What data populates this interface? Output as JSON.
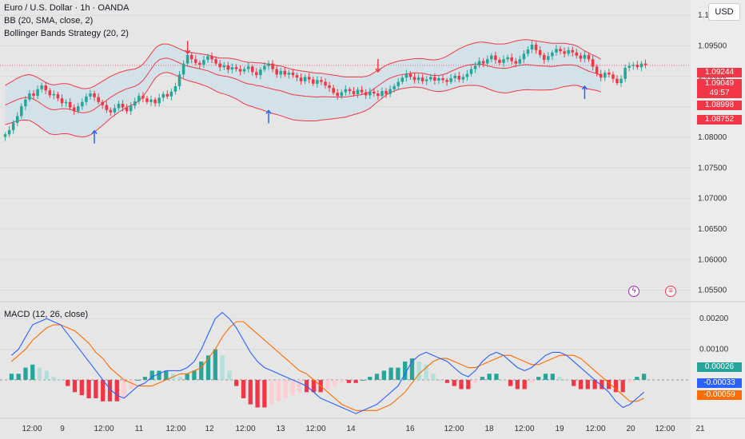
{
  "header": {
    "title": "Euro / U.S. Dollar · 1h · OANDA",
    "indicator_bb": "BB (20, SMA, close, 2)",
    "indicator_strategy": "Bollinger Bands Strategy (20, 2)",
    "currency_button": "USD"
  },
  "price_tags": [
    {
      "value": "1.09244",
      "color": "#f23645"
    },
    {
      "value": "1.09049",
      "color": "#f23645"
    },
    {
      "value": "49:57",
      "color": "#f23645"
    },
    {
      "value": "1.08998",
      "color": "#f23645"
    },
    {
      "value": "1.08752",
      "color": "#f23645"
    }
  ],
  "macd": {
    "label": "MACD (12, 26, close)",
    "tags": [
      {
        "value": "0.00026",
        "color": "#26a69a"
      },
      {
        "value": "-0.00033",
        "color": "#2962ff"
      },
      {
        "value": "-0.00059",
        "color": "#ff6d00"
      }
    ]
  },
  "icons": {
    "event1": "lightning-icon",
    "event2": "us-flag-icon"
  },
  "colors": {
    "up": "#26a69a",
    "down": "#f23645",
    "bb": "#f23645",
    "bb_fill": "#cfe0e8",
    "macd": "#2962ff",
    "signal": "#ff6d00"
  },
  "chart_data": [
    {
      "type": "candlestick",
      "title": "Euro / U.S. Dollar · 1h · OANDA",
      "x_ticks": [
        "12:00",
        "9",
        "12:00",
        "11",
        "12:00",
        "12",
        "12:00",
        "13",
        "12:00",
        "14",
        "16",
        "12:00",
        "18",
        "12:00",
        "19",
        "12:00",
        "20",
        "12:00",
        "21"
      ],
      "y_ticks": [
        1.1,
        1.095,
        1.09,
        1.085,
        1.08,
        1.075,
        1.07,
        1.065,
        1.06,
        1.055
      ],
      "y_tick_labels": [
        "1.10000",
        "1.09500",
        "1.09000",
        "1.08500",
        "1.08000",
        "1.07500",
        "1.07000",
        "1.06500",
        "1.06000",
        "1.05500"
      ],
      "ylim": [
        1.0535,
        1.1025
      ],
      "close": [
        1.0805,
        1.0812,
        1.0824,
        1.0835,
        1.0851,
        1.0862,
        1.0872,
        1.0868,
        1.0879,
        1.0885,
        1.0877,
        1.0869,
        1.0871,
        1.0864,
        1.0856,
        1.0858,
        1.0849,
        1.0843,
        1.0851,
        1.0858,
        1.0867,
        1.0872,
        1.0866,
        1.0858,
        1.0853,
        1.0845,
        1.0841,
        1.0848,
        1.0855,
        1.0849,
        1.0843,
        1.0852,
        1.0859,
        1.0868,
        1.0864,
        1.0858,
        1.0862,
        1.0856,
        1.0865,
        1.0871,
        1.0867,
        1.0875,
        1.0884,
        1.0903,
        1.0921,
        1.0935,
        1.0928,
        1.0922,
        1.0919,
        1.0927,
        1.0933,
        1.0928,
        1.0921,
        1.0915,
        1.0918,
        1.0911,
        1.0915,
        1.0912,
        1.0908,
        1.0912,
        1.0916,
        1.0907,
        1.0902,
        1.0911,
        1.0917,
        1.0921,
        1.0912,
        1.0903,
        1.0909,
        1.0903,
        1.0906,
        1.0902,
        1.0898,
        1.0892,
        1.0899,
        1.0895,
        1.0888,
        1.0894,
        1.0891,
        1.0885,
        1.0881,
        1.0873,
        1.0868,
        1.0874,
        1.0879,
        1.0876,
        1.0871,
        1.0878,
        1.0874,
        1.0869,
        1.0875,
        1.0872,
        1.0868,
        1.0876,
        1.0871,
        1.0879,
        1.0884,
        1.0891,
        1.0898,
        1.0904,
        1.0899,
        1.0894,
        1.0898,
        1.0892,
        1.0895,
        1.0899,
        1.0893,
        1.0897,
        1.0894,
        1.0891,
        1.0897,
        1.0901,
        1.0895,
        1.0899,
        1.0904,
        1.0912,
        1.0918,
        1.0925,
        1.0921,
        1.0928,
        1.0934,
        1.0927,
        1.0922,
        1.0928,
        1.0931,
        1.0925,
        1.0921,
        1.0928,
        1.0937,
        1.0944,
        1.0952,
        1.0943,
        1.0935,
        1.0927,
        1.0933,
        1.0939,
        1.0945,
        1.0941,
        1.0937,
        1.0943,
        1.0939,
        1.0934,
        1.0929,
        1.0935,
        1.0928,
        1.0916,
        1.0904,
        1.0898,
        1.0906,
        1.0903,
        1.0896,
        1.0889,
        1.0896,
        1.0914,
        1.0917,
        1.0919,
        1.0915,
        1.0921,
        1.0918
      ],
      "bb_upper": [
        1.0885,
        1.0889,
        1.0893,
        1.0897,
        1.09,
        1.0902,
        1.0903,
        1.0901,
        1.0898,
        1.0894,
        1.089,
        1.0887,
        1.0886,
        1.0887,
        1.0888,
        1.0888,
        1.0887,
        1.0884,
        1.0882,
        1.088,
        1.088,
        1.0881,
        1.0884,
        1.0888,
        1.0892,
        1.0896,
        1.09,
        1.0903,
        1.0906,
        1.0908,
        1.091,
        1.0911,
        1.0912,
        1.0915,
        1.092,
        1.0928,
        1.0937,
        1.0946,
        1.0951,
        1.0953,
        1.0953,
        1.0951,
        1.0948,
        1.0945,
        1.0942,
        1.094,
        1.0939,
        1.0938,
        1.0937,
        1.0936,
        1.0935,
        1.0933,
        1.0931,
        1.093,
        1.093,
        1.093,
        1.0929,
        1.0928,
        1.0926,
        1.0924,
        1.0923,
        1.0923,
        1.0922,
        1.0922,
        1.0921,
        1.092,
        1.0919,
        1.0918,
        1.0917,
        1.0915,
        1.0913,
        1.0911,
        1.091,
        1.0909,
        1.0908,
        1.0907,
        1.0906,
        1.0905,
        1.0905,
        1.0904,
        1.0903,
        1.0902,
        1.0901,
        1.09,
        1.0899,
        1.0899,
        1.0899,
        1.0899,
        1.0899,
        1.09,
        1.0902,
        1.0906,
        1.091,
        1.0914,
        1.0918,
        1.0921,
        1.0923,
        1.0925,
        1.0926,
        1.0927,
        1.0928,
        1.0929,
        1.0929,
        1.0929,
        1.0928,
        1.0927,
        1.0927,
        1.0928,
        1.093,
        1.0933,
        1.0937,
        1.0941,
        1.0945,
        1.0948,
        1.0951,
        1.0953,
        1.0955,
        1.0956,
        1.0956,
        1.0955,
        1.0954,
        1.0953,
        1.0953,
        1.0953,
        1.0954,
        1.0956,
        1.0958,
        1.0959,
        1.096,
        1.096,
        1.0959,
        1.0958,
        1.0957,
        1.0956,
        1.0955,
        1.0954,
        1.0954,
        1.0954,
        1.0954,
        1.0953,
        1.0952,
        1.095,
        1.0946,
        1.0942,
        1.0938,
        1.0935,
        1.0932,
        1.0928
      ]
    },
    {
      "type": "bar+line",
      "title": "MACD (12, 26, close)",
      "y_ticks": [
        0.002,
        0.001
      ],
      "y_tick_labels": [
        "0.00200",
        "0.00100"
      ],
      "ylim": [
        -0.0012,
        0.0025
      ],
      "series": [
        {
          "name": "MACD",
          "values": [
            0.0008,
            0.001,
            0.0014,
            0.0018,
            0.0019,
            0.002,
            0.0019,
            0.0018,
            0.0015,
            0.0012,
            0.0009,
            0.0006,
            0.0003,
            0.0,
            -0.0003,
            -0.0005,
            -0.0006,
            -0.0004,
            -0.0002,
            -0.0001,
            0.0001,
            0.0002,
            0.0003,
            0.0003,
            0.0003,
            0.0004,
            0.0006,
            0.001,
            0.0015,
            0.002,
            0.0022,
            0.002,
            0.0017,
            0.0013,
            0.0009,
            0.0006,
            0.0004,
            0.0003,
            0.0002,
            0.0001,
            0.0,
            -0.0001,
            -0.0002,
            -0.0004,
            -0.0006,
            -0.0007,
            -0.0008,
            -0.0009,
            -0.001,
            -0.0011,
            -0.001,
            -0.0009,
            -0.0008,
            -0.0006,
            -0.0004,
            -0.0002,
            0.0002,
            0.0006,
            0.0008,
            0.0009,
            0.0008,
            0.0007,
            0.0006,
            0.0004,
            0.0002,
            0.0001,
            0.0003,
            0.0006,
            0.0008,
            0.0009,
            0.0008,
            0.0006,
            0.0004,
            0.0003,
            0.0004,
            0.0006,
            0.0008,
            0.0009,
            0.0009,
            0.0008,
            0.0006,
            0.0004,
            0.0002,
            0.0,
            -0.0002,
            -0.0004,
            -0.0007,
            -0.0009,
            -0.0008,
            -0.0006,
            -0.0004
          ]
        },
        {
          "name": "Signal",
          "values": [
            0.0006,
            0.0008,
            0.001,
            0.0013,
            0.0015,
            0.0017,
            0.0018,
            0.0018,
            0.0017,
            0.0016,
            0.0014,
            0.0012,
            0.0009,
            0.0007,
            0.0004,
            0.0002,
            0.0,
            -0.0001,
            -0.0002,
            -0.0002,
            -0.0002,
            -0.0001,
            0.0,
            0.0001,
            0.0002,
            0.0002,
            0.0003,
            0.0004,
            0.0007,
            0.001,
            0.0014,
            0.0017,
            0.0019,
            0.0019,
            0.0017,
            0.0015,
            0.0013,
            0.0011,
            0.0009,
            0.0007,
            0.0005,
            0.0003,
            0.0002,
            0.0,
            -0.0002,
            -0.0004,
            -0.0006,
            -0.0008,
            -0.0009,
            -0.001,
            -0.001,
            -0.001,
            -0.001,
            -0.0009,
            -0.0008,
            -0.0006,
            -0.0004,
            -0.0001,
            0.0002,
            0.0004,
            0.0006,
            0.0007,
            0.0007,
            0.0006,
            0.0005,
            0.0004,
            0.0004,
            0.0005,
            0.0006,
            0.0007,
            0.0008,
            0.0008,
            0.0007,
            0.0006,
            0.0005,
            0.0005,
            0.0006,
            0.0007,
            0.0008,
            0.0008,
            0.0008,
            0.0007,
            0.0005,
            0.0003,
            0.0001,
            -0.0001,
            -0.0003,
            -0.0005,
            -0.0007,
            -0.0007,
            -0.0006
          ]
        },
        {
          "name": "Histogram",
          "values": [
            0.0002,
            0.0002,
            0.0004,
            0.0005,
            0.0004,
            0.0003,
            0.0001,
            0.0,
            -0.0002,
            -0.0004,
            -0.0005,
            -0.0006,
            -0.0006,
            -0.0007,
            -0.0007,
            -0.0007,
            -0.0006,
            -0.0003,
            0.0,
            0.0001,
            0.0003,
            0.0003,
            0.0003,
            0.0002,
            0.0001,
            0.0002,
            0.0003,
            0.0006,
            0.0008,
            0.001,
            0.0008,
            0.0003,
            -0.0002,
            -0.0006,
            -0.0008,
            -0.0009,
            -0.0009,
            -0.0008,
            -0.0007,
            -0.0006,
            -0.0005,
            -0.0004,
            -0.0004,
            -0.0004,
            -0.0004,
            -0.0003,
            -0.0002,
            -0.0001,
            -0.0001,
            -0.0001,
            0.0,
            0.0001,
            0.0002,
            0.0003,
            0.0004,
            0.0004,
            0.0006,
            0.0007,
            0.0006,
            0.0005,
            0.0002,
            0.0,
            -0.0001,
            -0.0002,
            -0.0003,
            -0.0003,
            -0.0001,
            0.0001,
            0.0002,
            0.0002,
            0.0,
            -0.0002,
            -0.0003,
            -0.0003,
            -0.0001,
            0.0001,
            0.0002,
            0.0002,
            0.0001,
            0.0,
            -0.0002,
            -0.0003,
            -0.0003,
            -0.0003,
            -0.0003,
            -0.0003,
            -0.0004,
            -0.0004,
            -0.0001,
            0.0001,
            0.0002
          ]
        }
      ]
    }
  ]
}
